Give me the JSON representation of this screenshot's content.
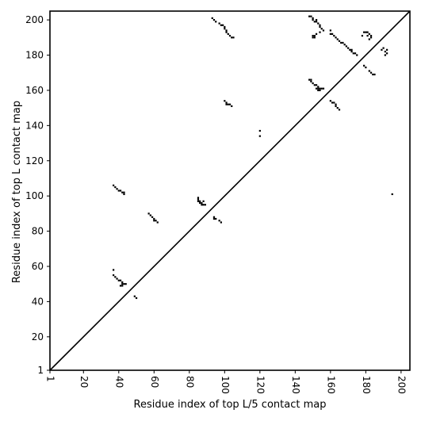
{
  "chart_data": {
    "type": "scatter",
    "subtype": "contact-map",
    "xlabel": "Residue index of top L/5 contact map",
    "ylabel": "Residue index of top L contact map",
    "xlim": [
      1,
      205
    ],
    "ylim": [
      1,
      205
    ],
    "x_ticks": [
      1,
      20,
      40,
      60,
      80,
      100,
      120,
      140,
      160,
      180,
      200
    ],
    "y_ticks": [
      1,
      20,
      40,
      60,
      80,
      100,
      120,
      140,
      160,
      180,
      200
    ],
    "x_tick_rotation": -90,
    "grid": false,
    "diagonal": true,
    "marker_color": "#000000",
    "points": [
      [
        37,
        106
      ],
      [
        38,
        105
      ],
      [
        39,
        104
      ],
      [
        40,
        103
      ],
      [
        41,
        103
      ],
      [
        42,
        102
      ],
      [
        43,
        101
      ],
      [
        43,
        102
      ],
      [
        37,
        58
      ],
      [
        37,
        55
      ],
      [
        38,
        54
      ],
      [
        39,
        53
      ],
      [
        40,
        52
      ],
      [
        41,
        52
      ],
      [
        42,
        51
      ],
      [
        42,
        50
      ],
      [
        43,
        50
      ],
      [
        44,
        50
      ],
      [
        42,
        49
      ],
      [
        41,
        49
      ],
      [
        49,
        43
      ],
      [
        50,
        42
      ],
      [
        57,
        90
      ],
      [
        58,
        89
      ],
      [
        59,
        88
      ],
      [
        60,
        87
      ],
      [
        61,
        86
      ],
      [
        62,
        85
      ],
      [
        60,
        86
      ],
      [
        85,
        99
      ],
      [
        85,
        98
      ],
      [
        85,
        97
      ],
      [
        86,
        97
      ],
      [
        86,
        96
      ],
      [
        87,
        96
      ],
      [
        88,
        97
      ],
      [
        88,
        95
      ],
      [
        89,
        95
      ],
      [
        87,
        95
      ],
      [
        94,
        88
      ],
      [
        95,
        87
      ],
      [
        94,
        87
      ],
      [
        97,
        86
      ],
      [
        98,
        85
      ],
      [
        93,
        201
      ],
      [
        94,
        200
      ],
      [
        95,
        199
      ],
      [
        97,
        198
      ],
      [
        98,
        197
      ],
      [
        99,
        197
      ],
      [
        100,
        196
      ],
      [
        100,
        195
      ],
      [
        101,
        194
      ],
      [
        101,
        193
      ],
      [
        102,
        192
      ],
      [
        103,
        191
      ],
      [
        104,
        190
      ],
      [
        105,
        190
      ],
      [
        100,
        154
      ],
      [
        101,
        153
      ],
      [
        102,
        152
      ],
      [
        103,
        152
      ],
      [
        104,
        151
      ],
      [
        101,
        152
      ],
      [
        120,
        137
      ],
      [
        120,
        134
      ],
      [
        148,
        202
      ],
      [
        149,
        202
      ],
      [
        150,
        201
      ],
      [
        150,
        200
      ],
      [
        151,
        199
      ],
      [
        152,
        199
      ],
      [
        152,
        200
      ],
      [
        153,
        198
      ],
      [
        154,
        197
      ],
      [
        154,
        196
      ],
      [
        155,
        195
      ],
      [
        156,
        194
      ],
      [
        154,
        193
      ],
      [
        152,
        192
      ],
      [
        151,
        191
      ],
      [
        150,
        191
      ],
      [
        150,
        190
      ],
      [
        151,
        190
      ],
      [
        148,
        166
      ],
      [
        149,
        166
      ],
      [
        149,
        165
      ],
      [
        150,
        164
      ],
      [
        151,
        163
      ],
      [
        152,
        163
      ],
      [
        153,
        162
      ],
      [
        152,
        161
      ],
      [
        153,
        161
      ],
      [
        154,
        161
      ],
      [
        155,
        161
      ],
      [
        153,
        160
      ],
      [
        154,
        160
      ],
      [
        156,
        161
      ],
      [
        160,
        194
      ],
      [
        160,
        192
      ],
      [
        161,
        192
      ],
      [
        162,
        191
      ],
      [
        163,
        190
      ],
      [
        164,
        189
      ],
      [
        165,
        188
      ],
      [
        166,
        187
      ],
      [
        167,
        187
      ],
      [
        168,
        186
      ],
      [
        169,
        185
      ],
      [
        170,
        184
      ],
      [
        171,
        183
      ],
      [
        172,
        183
      ],
      [
        172,
        182
      ],
      [
        173,
        181
      ],
      [
        174,
        181
      ],
      [
        175,
        180
      ],
      [
        160,
        154
      ],
      [
        161,
        153
      ],
      [
        162,
        153
      ],
      [
        163,
        152
      ],
      [
        163,
        151
      ],
      [
        164,
        150
      ],
      [
        165,
        149
      ],
      [
        178,
        191
      ],
      [
        179,
        193
      ],
      [
        180,
        193
      ],
      [
        181,
        193
      ],
      [
        182,
        192
      ],
      [
        183,
        191
      ],
      [
        183,
        190
      ],
      [
        182,
        189
      ],
      [
        181,
        191
      ],
      [
        179,
        174
      ],
      [
        180,
        173
      ],
      [
        182,
        171
      ],
      [
        183,
        170
      ],
      [
        184,
        169
      ],
      [
        185,
        169
      ],
      [
        189,
        183
      ],
      [
        190,
        184
      ],
      [
        191,
        182
      ],
      [
        192,
        181
      ],
      [
        192,
        183
      ],
      [
        191,
        180
      ],
      [
        195,
        101
      ]
    ]
  }
}
